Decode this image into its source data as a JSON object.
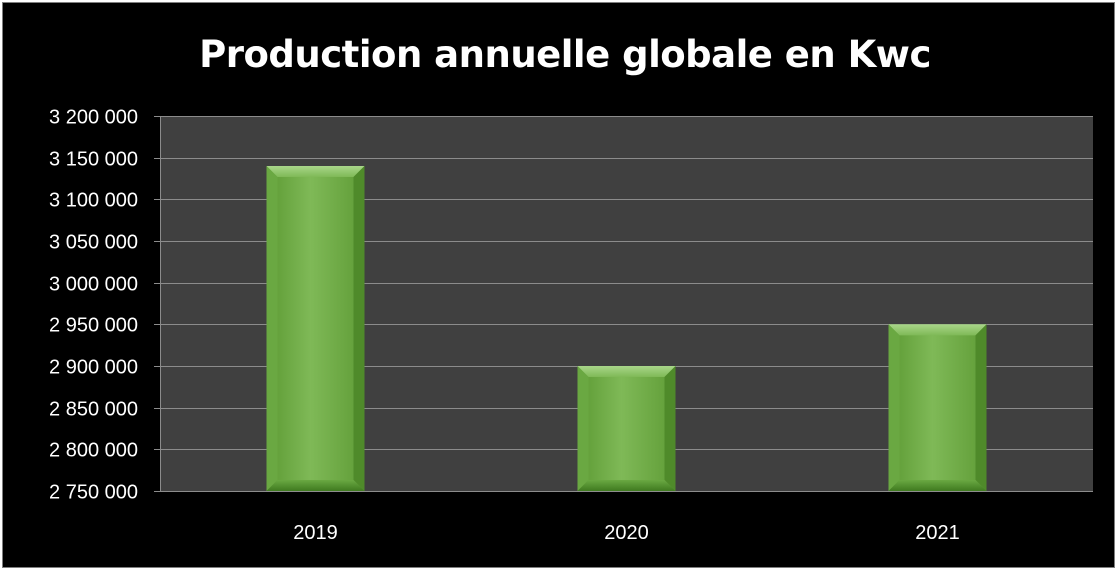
{
  "chart_data": {
    "type": "bar",
    "title": "Production annuelle globale en Kwc",
    "categories": [
      "2019",
      "2020",
      "2021"
    ],
    "values": [
      3140000,
      2900000,
      2950000
    ],
    "xlabel": "",
    "ylabel": "",
    "ylim": [
      2750000,
      3200000
    ],
    "yticks": [
      2750000,
      2800000,
      2850000,
      2900000,
      2950000,
      3000000,
      3050000,
      3100000,
      3150000,
      3200000
    ],
    "ytick_labels": [
      "2 750 000",
      "2 800 000",
      "2 850 000",
      "2 900 000",
      "2 950 000",
      "3 000 000",
      "3 050 000",
      "3 100 000",
      "3 150 000",
      "3 200 000"
    ],
    "grid": true,
    "legend": "none",
    "colors": {
      "background": "#000000",
      "plot_area": "#404040",
      "gridline": "#8c8c8c",
      "bar_light": "#8fc46a",
      "bar_mid": "#72ad46",
      "bar_dark": "#4f8a2a",
      "text": "#ffffff"
    }
  }
}
